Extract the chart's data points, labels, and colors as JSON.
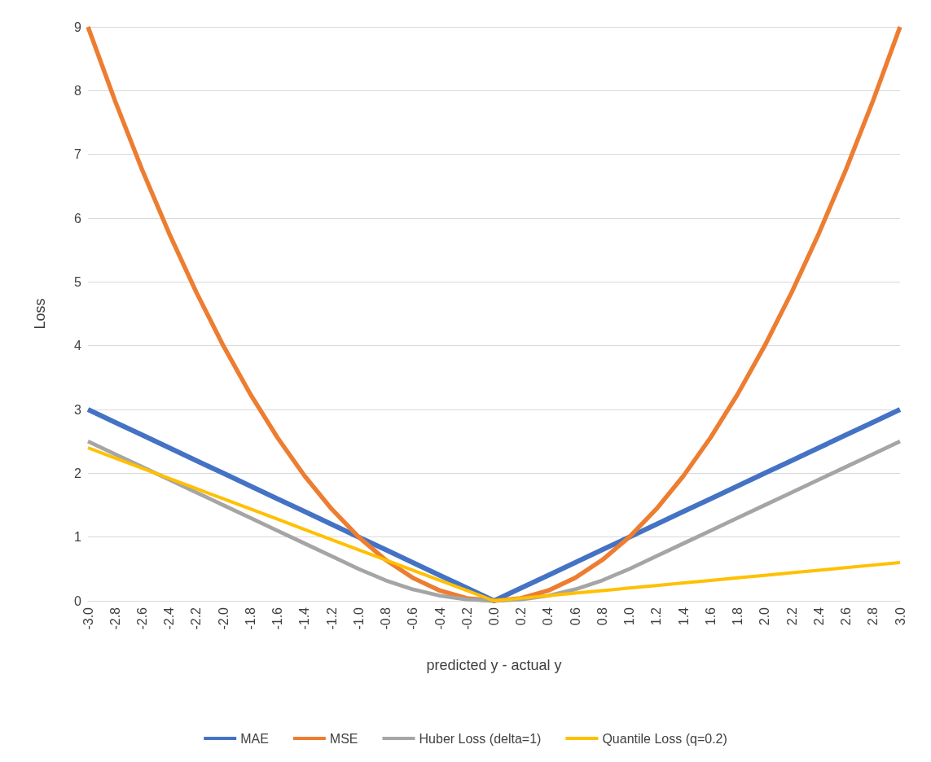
{
  "chart_data": {
    "type": "line",
    "xlabel": "predicted y - actual y",
    "ylabel": "Loss",
    "categories": [
      "-3.0",
      "-2.8",
      "-2.6",
      "-2.4",
      "-2.2",
      "-2.0",
      "-1.8",
      "-1.6",
      "-1.4",
      "-1.2",
      "-1.0",
      "-0.8",
      "-0.6",
      "-0.4",
      "-0.2",
      "0.0",
      "0.2",
      "0.4",
      "0.6",
      "0.8",
      "1.0",
      "1.2",
      "1.4",
      "1.6",
      "1.8",
      "2.0",
      "2.2",
      "2.4",
      "2.6",
      "2.8",
      "3.0"
    ],
    "series": [
      {
        "name": "MAE",
        "color": "#4472c4",
        "values": [
          3,
          2.8,
          2.6,
          2.4,
          2.2,
          2,
          1.8,
          1.6,
          1.4,
          1.2,
          1,
          0.8,
          0.6,
          0.4,
          0.2,
          0,
          0.2,
          0.4,
          0.6,
          0.8,
          1,
          1.2,
          1.4,
          1.6,
          1.8,
          2,
          2.2,
          2.4,
          2.6,
          2.8,
          3
        ]
      },
      {
        "name": "MSE",
        "color": "#ed7d31",
        "values": [
          9,
          7.84,
          6.76,
          5.76,
          4.84,
          4,
          3.24,
          2.56,
          1.96,
          1.44,
          1,
          0.64,
          0.36,
          0.16,
          0.04,
          0,
          0.04,
          0.16,
          0.36,
          0.64,
          1,
          1.44,
          1.96,
          2.56,
          3.24,
          4,
          4.84,
          5.76,
          6.76,
          7.84,
          9
        ]
      },
      {
        "name": "Huber Loss (delta=1)",
        "color": "#a5a5a5",
        "values": [
          2.5,
          2.3,
          2.1,
          1.9,
          1.7,
          1.5,
          1.3,
          1.1,
          0.9,
          0.7,
          0.5,
          0.32,
          0.18,
          0.08,
          0.02,
          0,
          0.02,
          0.08,
          0.18,
          0.32,
          0.5,
          0.7,
          0.9,
          1.1,
          1.3,
          1.5,
          1.7,
          1.9,
          2.1,
          2.3,
          2.5
        ]
      },
      {
        "name": "Quantile Loss (q=0.2)",
        "color": "#ffc000",
        "values": [
          2.4,
          2.24,
          2.08,
          1.92,
          1.76,
          1.6,
          1.44,
          1.28,
          1.12,
          0.96,
          0.8,
          0.64,
          0.48,
          0.32,
          0.16,
          0,
          0.04,
          0.08,
          0.12,
          0.16,
          0.2,
          0.24,
          0.28,
          0.32,
          0.36,
          0.4,
          0.44,
          0.48,
          0.52,
          0.56,
          0.6
        ]
      }
    ],
    "ylim": [
      0,
      9
    ],
    "yticks": [
      0,
      1,
      2,
      3,
      4,
      5,
      6,
      7,
      8,
      9
    ],
    "grid": "y",
    "legend": "bottom",
    "marker": "none"
  }
}
